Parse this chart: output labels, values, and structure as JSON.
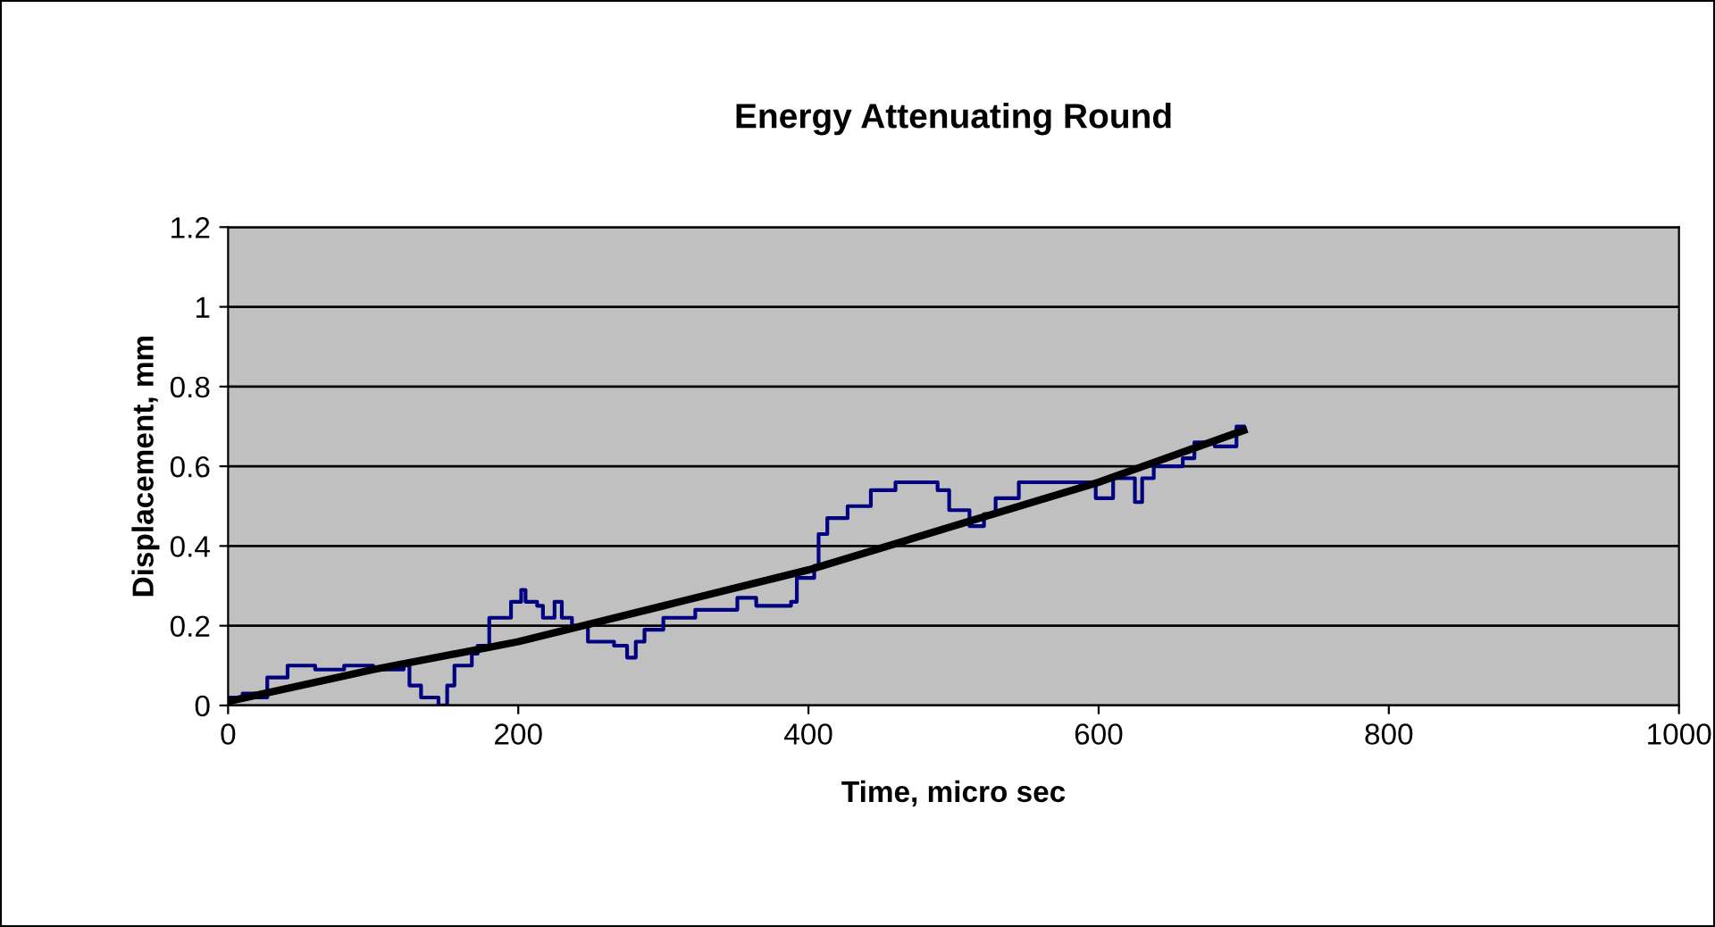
{
  "chart_data": {
    "type": "line",
    "title": "Energy Attenuating Round",
    "xlabel": "Time, micro sec",
    "ylabel": "Displacement, mm",
    "xlim": [
      0,
      1000
    ],
    "xticks": [
      0,
      200,
      400,
      600,
      800,
      1000
    ],
    "ylim": [
      0,
      1.2
    ],
    "yticks": [
      0,
      0.2,
      0.4,
      0.6,
      0.8,
      1,
      1.2
    ],
    "grid": "y",
    "marker": "none",
    "line_style": "solid",
    "series": [
      {
        "type": "step",
        "color": "#000080",
        "x": [
          0,
          10,
          20,
          27,
          41,
          60,
          80,
          100,
          121,
          125,
          133,
          145,
          151,
          156,
          168,
          172,
          180,
          195,
          202,
          205,
          213,
          217,
          225,
          230,
          237,
          248,
          254,
          266,
          275,
          281,
          287,
          300,
          322,
          347,
          351,
          364,
          388,
          392,
          404,
          407,
          413,
          427,
          443,
          460,
          485,
          489,
          497,
          511,
          521,
          529,
          545,
          570,
          594,
          598,
          610,
          625,
          630,
          638,
          658,
          666,
          680,
          695,
          700
        ],
        "values": [
          0.02,
          0.03,
          0.02,
          0.07,
          0.1,
          0.09,
          0.1,
          0.09,
          0.1,
          0.05,
          0.02,
          0,
          0.05,
          0.1,
          0.13,
          0.15,
          0.22,
          0.26,
          0.29,
          0.26,
          0.25,
          0.22,
          0.26,
          0.22,
          0.2,
          0.16,
          0.16,
          0.15,
          0.12,
          0.16,
          0.19,
          0.22,
          0.24,
          0.24,
          0.27,
          0.25,
          0.26,
          0.32,
          0.35,
          0.43,
          0.47,
          0.5,
          0.54,
          0.56,
          0.56,
          0.54,
          0.49,
          0.45,
          0.48,
          0.52,
          0.56,
          0.56,
          0.56,
          0.52,
          0.57,
          0.51,
          0.57,
          0.6,
          0.62,
          0.66,
          0.65,
          0.7,
          0.7
        ]
      },
      {
        "color": "#000000",
        "x": [
          0,
          100,
          200,
          300,
          400,
          500,
          600,
          700
        ],
        "values": [
          0.01,
          0.09,
          0.16,
          0.25,
          0.34,
          0.45,
          0.56,
          0.69
        ]
      }
    ]
  }
}
